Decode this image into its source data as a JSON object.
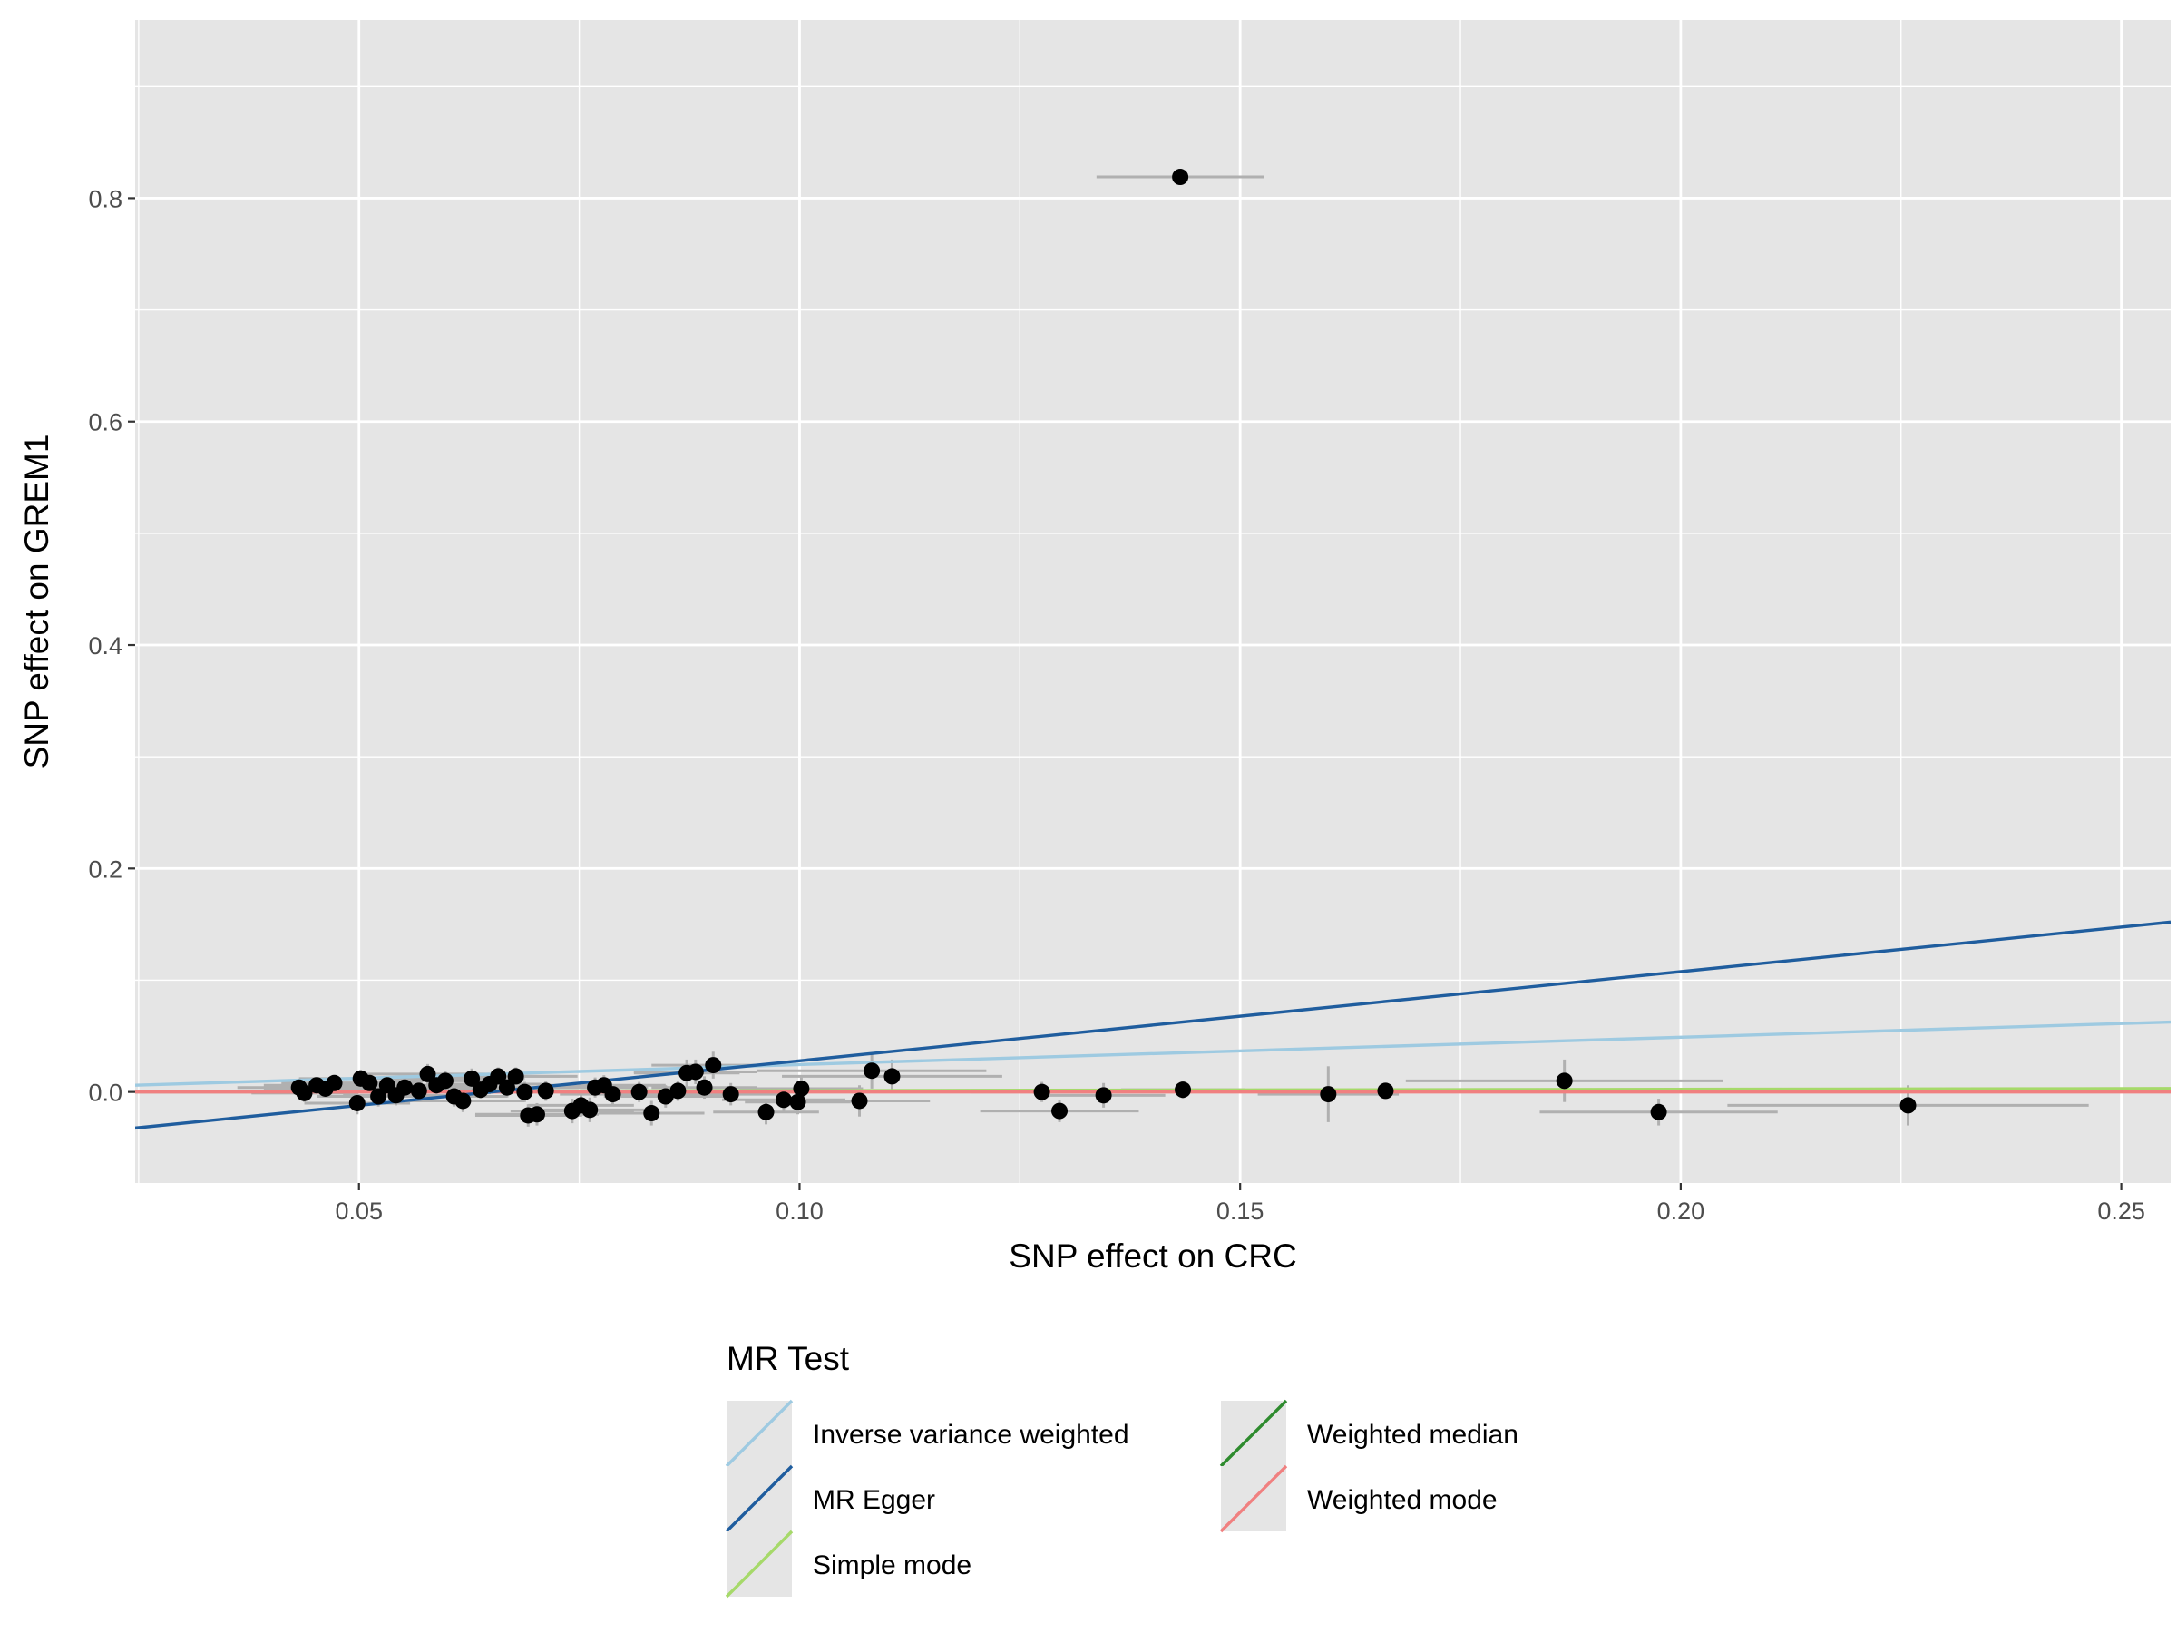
{
  "chart_data": {
    "type": "scatter",
    "title": "",
    "xlabel": "SNP effect on CRC",
    "ylabel": "SNP effect on GREM1",
    "xlim": [
      0.0246,
      0.2556
    ],
    "ylim": [
      -0.0815,
      0.9595
    ],
    "x_ticks": [
      0.05,
      0.1,
      0.15,
      0.2,
      0.25
    ],
    "x_tick_labels": [
      "0.05",
      "0.10",
      "0.15",
      "0.20",
      "0.25"
    ],
    "y_ticks": [
      0.0,
      0.2,
      0.4,
      0.6,
      0.8
    ],
    "y_tick_labels": [
      "0.0",
      "0.2",
      "0.4",
      "0.6",
      "0.8"
    ],
    "grid": true,
    "points": [
      {
        "x": 0.1432,
        "y": 0.819,
        "xerr": 0.0095,
        "yerr": 0.004
      },
      {
        "x": 0.0432,
        "y": 0.004,
        "xerr": 0.007,
        "yerr": 0.006
      },
      {
        "x": 0.0438,
        "y": -0.001,
        "xerr": 0.006,
        "yerr": 0.008
      },
      {
        "x": 0.0452,
        "y": 0.006,
        "xerr": 0.006,
        "yerr": 0.007
      },
      {
        "x": 0.0462,
        "y": 0.003,
        "xerr": 0.007,
        "yerr": 0.008
      },
      {
        "x": 0.0472,
        "y": 0.008,
        "xerr": 0.006,
        "yerr": 0.007
      },
      {
        "x": 0.0498,
        "y": -0.01,
        "xerr": 0.006,
        "yerr": 0.01
      },
      {
        "x": 0.0502,
        "y": 0.012,
        "xerr": 0.007,
        "yerr": 0.008
      },
      {
        "x": 0.0512,
        "y": 0.008,
        "xerr": 0.006,
        "yerr": 0.009
      },
      {
        "x": 0.0522,
        "y": -0.004,
        "xerr": 0.007,
        "yerr": 0.009
      },
      {
        "x": 0.0532,
        "y": 0.006,
        "xerr": 0.006,
        "yerr": 0.008
      },
      {
        "x": 0.0542,
        "y": -0.003,
        "xerr": 0.006,
        "yerr": 0.009
      },
      {
        "x": 0.0552,
        "y": 0.004,
        "xerr": 0.007,
        "yerr": 0.008
      },
      {
        "x": 0.0568,
        "y": 0.001,
        "xerr": 0.006,
        "yerr": 0.008
      },
      {
        "x": 0.0578,
        "y": 0.016,
        "xerr": 0.007,
        "yerr": 0.009
      },
      {
        "x": 0.0588,
        "y": 0.006,
        "xerr": 0.006,
        "yerr": 0.008
      },
      {
        "x": 0.0598,
        "y": 0.01,
        "xerr": 0.007,
        "yerr": 0.009
      },
      {
        "x": 0.0608,
        "y": -0.004,
        "xerr": 0.006,
        "yerr": 0.009
      },
      {
        "x": 0.0618,
        "y": -0.008,
        "xerr": 0.007,
        "yerr": 0.01
      },
      {
        "x": 0.0628,
        "y": 0.012,
        "xerr": 0.006,
        "yerr": 0.009
      },
      {
        "x": 0.0638,
        "y": 0.002,
        "xerr": 0.007,
        "yerr": 0.008
      },
      {
        "x": 0.0648,
        "y": 0.007,
        "xerr": 0.006,
        "yerr": 0.009
      },
      {
        "x": 0.0658,
        "y": 0.014,
        "xerr": 0.007,
        "yerr": 0.008
      },
      {
        "x": 0.0668,
        "y": 0.004,
        "xerr": 0.006,
        "yerr": 0.009
      },
      {
        "x": 0.0678,
        "y": 0.014,
        "xerr": 0.007,
        "yerr": 0.008
      },
      {
        "x": 0.0688,
        "y": 0.0,
        "xerr": 0.006,
        "yerr": 0.009
      },
      {
        "x": 0.0692,
        "y": -0.021,
        "xerr": 0.006,
        "yerr": 0.01
      },
      {
        "x": 0.0702,
        "y": -0.02,
        "xerr": 0.007,
        "yerr": 0.01
      },
      {
        "x": 0.0712,
        "y": 0.001,
        "xerr": 0.006,
        "yerr": 0.009
      },
      {
        "x": 0.0742,
        "y": -0.017,
        "xerr": 0.007,
        "yerr": 0.011
      },
      {
        "x": 0.0752,
        "y": -0.012,
        "xerr": 0.006,
        "yerr": 0.01
      },
      {
        "x": 0.0762,
        "y": -0.016,
        "xerr": 0.007,
        "yerr": 0.011
      },
      {
        "x": 0.0768,
        "y": 0.004,
        "xerr": 0.006,
        "yerr": 0.009
      },
      {
        "x": 0.0778,
        "y": 0.006,
        "xerr": 0.007,
        "yerr": 0.009
      },
      {
        "x": 0.0788,
        "y": -0.002,
        "xerr": 0.006,
        "yerr": 0.009
      },
      {
        "x": 0.0818,
        "y": 0.0,
        "xerr": 0.007,
        "yerr": 0.009
      },
      {
        "x": 0.0832,
        "y": -0.019,
        "xerr": 0.006,
        "yerr": 0.011
      },
      {
        "x": 0.0848,
        "y": -0.004,
        "xerr": 0.007,
        "yerr": 0.01
      },
      {
        "x": 0.0862,
        "y": 0.001,
        "xerr": 0.006,
        "yerr": 0.009
      },
      {
        "x": 0.0872,
        "y": 0.017,
        "xerr": 0.006,
        "yerr": 0.012
      },
      {
        "x": 0.0882,
        "y": 0.018,
        "xerr": 0.007,
        "yerr": 0.011
      },
      {
        "x": 0.0892,
        "y": 0.004,
        "xerr": 0.006,
        "yerr": 0.01
      },
      {
        "x": 0.0902,
        "y": 0.024,
        "xerr": 0.007,
        "yerr": 0.012
      },
      {
        "x": 0.0922,
        "y": -0.002,
        "xerr": 0.006,
        "yerr": 0.01
      },
      {
        "x": 0.0962,
        "y": -0.018,
        "xerr": 0.006,
        "yerr": 0.011
      },
      {
        "x": 0.0982,
        "y": -0.007,
        "xerr": 0.007,
        "yerr": 0.01
      },
      {
        "x": 0.0998,
        "y": -0.009,
        "xerr": 0.006,
        "yerr": 0.011
      },
      {
        "x": 0.1002,
        "y": 0.003,
        "xerr": 0.007,
        "yerr": 0.01
      },
      {
        "x": 0.1068,
        "y": -0.008,
        "xerr": 0.008,
        "yerr": 0.014
      },
      {
        "x": 0.1082,
        "y": 0.019,
        "xerr": 0.013,
        "yerr": 0.016
      },
      {
        "x": 0.1105,
        "y": 0.014,
        "xerr": 0.0125,
        "yerr": 0.015
      },
      {
        "x": 0.1275,
        "y": 0.0,
        "xerr": 0.008,
        "yerr": 0.009
      },
      {
        "x": 0.1295,
        "y": -0.017,
        "xerr": 0.009,
        "yerr": 0.01
      },
      {
        "x": 0.1345,
        "y": -0.003,
        "xerr": 0.007,
        "yerr": 0.011
      },
      {
        "x": 0.1435,
        "y": 0.002,
        "xerr": 0.007,
        "yerr": 0.008
      },
      {
        "x": 0.16,
        "y": -0.002,
        "xerr": 0.008,
        "yerr": 0.025
      },
      {
        "x": 0.1665,
        "y": 0.001,
        "xerr": 0.006,
        "yerr": 0.007
      },
      {
        "x": 0.1868,
        "y": 0.01,
        "xerr": 0.018,
        "yerr": 0.019
      },
      {
        "x": 0.1975,
        "y": -0.018,
        "xerr": 0.0135,
        "yerr": 0.012
      },
      {
        "x": 0.2258,
        "y": -0.012,
        "xerr": 0.0205,
        "yerr": 0.018
      }
    ],
    "series": [
      {
        "name": "Inverse variance weighted",
        "intercept": 0.0,
        "slope": 0.245,
        "color": "#9ecae1"
      },
      {
        "name": "MR Egger",
        "intercept": -0.0519,
        "slope": 0.798,
        "color": "#1f5d9e"
      },
      {
        "name": "Simple mode",
        "intercept": 0.0,
        "slope": 0.012,
        "color": "#a6d96a"
      },
      {
        "name": "Weighted median",
        "intercept": 0.0,
        "slope": 0.006,
        "color": "#2e8b2e"
      },
      {
        "name": "Weighted mode",
        "intercept": 0.0,
        "slope": 0.0,
        "color": "#f08080"
      }
    ],
    "legend": {
      "title": "MR Test",
      "placement": "bottom",
      "entries": [
        "Inverse variance weighted",
        "Weighted median",
        "MR Egger",
        "Weighted mode",
        "Simple mode"
      ]
    }
  },
  "colors": {
    "panel_background": "#e5e5e5",
    "grid": "#ffffff",
    "point": "#000000",
    "errorbar": "#b0b0b0"
  }
}
